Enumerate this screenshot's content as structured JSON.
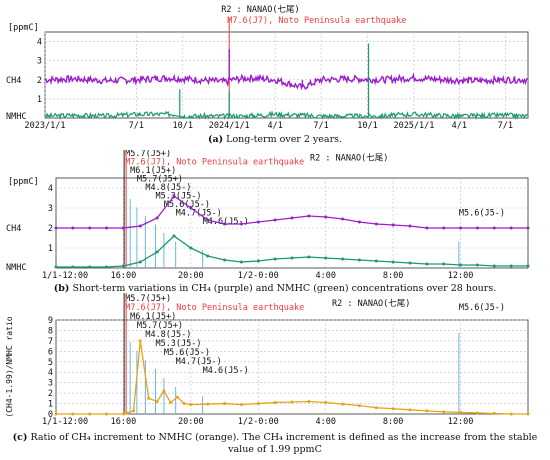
{
  "panels": [
    {
      "caption": {
        "tag": "(a)",
        "text": "Long-term over 2 years."
      },
      "station": "R2 : NANAO(七尾)",
      "event": "M7.6(J7), Noto Peninsula earthquake",
      "unit": "[ppmC]"
    },
    {
      "caption": {
        "tag": "(b)",
        "text": "Short-term variations in CH₄ (purple) and NMHC (green) concentrations over 28 hours."
      },
      "station": "R2 : NANAO(七尾)",
      "event": "M7.6(J7), Noto Peninsula earthquake",
      "unit": "[ppmC]"
    },
    {
      "caption": {
        "tag": "(c)",
        "text": "Ratio of CH₄ increment to NMHC (orange). The CH₄ increment is defined as the increase from the stable value of 1.99 ppmC"
      },
      "station": "R2 : NANAO(七尾)",
      "event": "M7.6(J7), Noto Peninsula earthquake"
    }
  ],
  "colors": {
    "ch4": "#9b1fc9",
    "nmhc": "#1a9a6a",
    "ratio": "#e8a317",
    "event_line": "#f23a3a",
    "aftershock_line": "#5ab0e0",
    "grid": "#b9bbe0",
    "axis": "#333333"
  },
  "chart_data": [
    {
      "type": "line",
      "xlabel": "",
      "ylabel": "",
      "x_ticks": [
        "2023/1/1",
        "7/1",
        "10/1",
        "2024/1/1",
        "4/1",
        "7/1",
        "10/1",
        "2025/1/1",
        "4/1",
        "7/1"
      ],
      "y_ticks": [
        "1",
        "2",
        "3",
        "4"
      ],
      "y_series_labels": [
        "CH4",
        "NMHC"
      ],
      "ylim": [
        0,
        4.5
      ],
      "grid": true,
      "series": [
        {
          "name": "CH4",
          "x": [
            "2023/1/1",
            "2023/3/1",
            "2023/5/1",
            "2023/7/1",
            "2023/9/1",
            "2023/11/1",
            "2023/12/20",
            "2024/1/1",
            "2024/1/5",
            "2024/2/15",
            "2024/4/1",
            "2024/5/25",
            "2024/7/1",
            "2024/9/1",
            "2024/11/1",
            "2025/1/1",
            "2025/3/1",
            "2025/5/1",
            "2025/7/1",
            "2025/8/10"
          ],
          "values": [
            2.0,
            2.05,
            1.95,
            2.0,
            2.1,
            2.0,
            1.9,
            3.6,
            2.0,
            2.1,
            2.0,
            1.6,
            2.0,
            2.05,
            2.0,
            2.1,
            2.0,
            1.95,
            2.0,
            2.0
          ]
        },
        {
          "name": "NMHC",
          "x": [
            "2023/1/1",
            "2023/3/1",
            "2023/5/1",
            "2023/7/1",
            "2023/9/25",
            "2023/11/1",
            "2024/1/1",
            "2024/2/1",
            "2024/4/1",
            "2024/7/1",
            "2024/10/3",
            "2024/10/20",
            "2025/1/1",
            "2025/4/1",
            "2025/7/1",
            "2025/8/10"
          ],
          "values": [
            0.1,
            0.15,
            0.1,
            0.2,
            1.5,
            0.1,
            1.4,
            0.1,
            0.2,
            0.1,
            3.9,
            0.1,
            0.2,
            0.1,
            0.15,
            0.1
          ]
        }
      ],
      "annotations": [
        "R2 : NANAO(七尾)",
        "M7.6(J7), Noto Peninsula earthquake"
      ]
    },
    {
      "type": "line",
      "xlabel": "",
      "ylabel": "",
      "x_ticks": [
        "1/1-12:00",
        "16:00",
        "20:00",
        "1/2-0:00",
        "4:00",
        "8:00",
        "12:00"
      ],
      "x_tick_hours": [
        0,
        4,
        8,
        12,
        16,
        20,
        24
      ],
      "y_ticks": [
        "1",
        "2",
        "3",
        "4"
      ],
      "y_series_labels": [
        "CH4",
        "NMHC"
      ],
      "ylim": [
        0,
        4.5
      ],
      "xlim_hours": [
        0,
        28
      ],
      "grid": true,
      "series": [
        {
          "name": "CH4",
          "x_hours": [
            0,
            1,
            2,
            3,
            4,
            5,
            6,
            7,
            8,
            9,
            10,
            11,
            12,
            13,
            14,
            15,
            16,
            17,
            18,
            19,
            20,
            21,
            22,
            23,
            24,
            25,
            26,
            27,
            28
          ],
          "values": [
            2.0,
            2.0,
            2.0,
            2.0,
            2.0,
            2.1,
            2.5,
            3.6,
            3.0,
            2.4,
            2.2,
            2.2,
            2.3,
            2.4,
            2.5,
            2.6,
            2.55,
            2.45,
            2.3,
            2.2,
            2.15,
            2.1,
            2.0,
            2.0,
            2.0,
            2.0,
            2.0,
            2.0,
            2.0
          ]
        },
        {
          "name": "NMHC",
          "x_hours": [
            0,
            1,
            2,
            3,
            4,
            5,
            6,
            7,
            8,
            9,
            10,
            11,
            12,
            13,
            14,
            15,
            16,
            17,
            18,
            19,
            20,
            21,
            22,
            23,
            24,
            25,
            26,
            27,
            28
          ],
          "values": [
            0.05,
            0.05,
            0.05,
            0.05,
            0.1,
            0.3,
            0.8,
            1.6,
            1.0,
            0.6,
            0.4,
            0.3,
            0.35,
            0.45,
            0.5,
            0.55,
            0.5,
            0.45,
            0.4,
            0.35,
            0.3,
            0.25,
            0.2,
            0.2,
            0.15,
            0.15,
            0.1,
            0.1,
            0.1
          ]
        }
      ],
      "event_hour": 4.1,
      "event_labels": [
        {
          "text": "M5.7(J5+)",
          "hour": 4.1,
          "row": 0
        },
        {
          "text": "M6.1(J5+)",
          "hour": 4.4,
          "row": 2
        },
        {
          "text": "M5.7(J5+)",
          "hour": 4.8,
          "row": 3
        },
        {
          "text": "M4.8(J5-)",
          "hour": 5.3,
          "row": 4
        },
        {
          "text": "M5.3(J5-)",
          "hour": 5.9,
          "row": 5
        },
        {
          "text": "M5.6(J5-)",
          "hour": 6.4,
          "row": 6
        },
        {
          "text": "M4.7(J5-)",
          "hour": 7.1,
          "row": 7
        },
        {
          "text": "M4.6(J5-)",
          "hour": 8.7,
          "row": 8
        },
        {
          "text": "M5.6(J5-)",
          "hour": 23.9,
          "row": 7
        }
      ]
    },
    {
      "type": "line",
      "xlabel": "",
      "ylabel": "(CH4-1.99)/NMHC ratio",
      "x_ticks": [
        "1/1-12:00",
        "16:00",
        "20:00",
        "1/2-0:00",
        "4:00",
        "8:00",
        "12:00"
      ],
      "x_tick_hours": [
        0,
        4,
        8,
        12,
        16,
        20,
        24
      ],
      "y_ticks": [
        "0",
        "1",
        "2",
        "3",
        "4",
        "5",
        "6",
        "7",
        "8",
        "9"
      ],
      "ylim": [
        0,
        9
      ],
      "xlim_hours": [
        0,
        28
      ],
      "grid": true,
      "series": [
        {
          "name": "(CH4-1.99)/NMHC",
          "x_hours": [
            0,
            1,
            2,
            3,
            4,
            4.2,
            4.6,
            5.0,
            5.5,
            6.0,
            6.4,
            6.8,
            7.2,
            7.6,
            8.0,
            9,
            10,
            11,
            12,
            13,
            14,
            15,
            16,
            17,
            18,
            19,
            20,
            21,
            22,
            23,
            24,
            25,
            26,
            27,
            28
          ],
          "values": [
            0,
            0,
            0,
            0,
            0,
            0.1,
            0.3,
            7.0,
            1.5,
            1.2,
            2.2,
            1.1,
            1.6,
            1.0,
            0.9,
            0.95,
            1.0,
            0.9,
            1.0,
            1.1,
            1.15,
            1.2,
            1.1,
            0.95,
            0.8,
            0.6,
            0.5,
            0.4,
            0.3,
            0.2,
            0.15,
            0.1,
            0.05,
            0,
            0
          ]
        }
      ],
      "event_hour": 4.1,
      "event_labels": [
        {
          "text": "M5.7(J5+)",
          "hour": 4.1,
          "row": 0
        },
        {
          "text": "M6.1(J5+)",
          "hour": 4.4,
          "row": 2
        },
        {
          "text": "M5.7(J5+)",
          "hour": 4.8,
          "row": 3
        },
        {
          "text": "M4.8(J5-)",
          "hour": 5.3,
          "row": 4
        },
        {
          "text": "M5.3(J5-)",
          "hour": 5.9,
          "row": 5
        },
        {
          "text": "M5.6(J5-)",
          "hour": 6.4,
          "row": 6
        },
        {
          "text": "M4.7(J5-)",
          "hour": 7.1,
          "row": 7
        },
        {
          "text": "M4.6(J5-)",
          "hour": 8.7,
          "row": 8
        },
        {
          "text": "M5.6(J5-)",
          "hour": 23.9,
          "row": 1
        }
      ]
    }
  ]
}
